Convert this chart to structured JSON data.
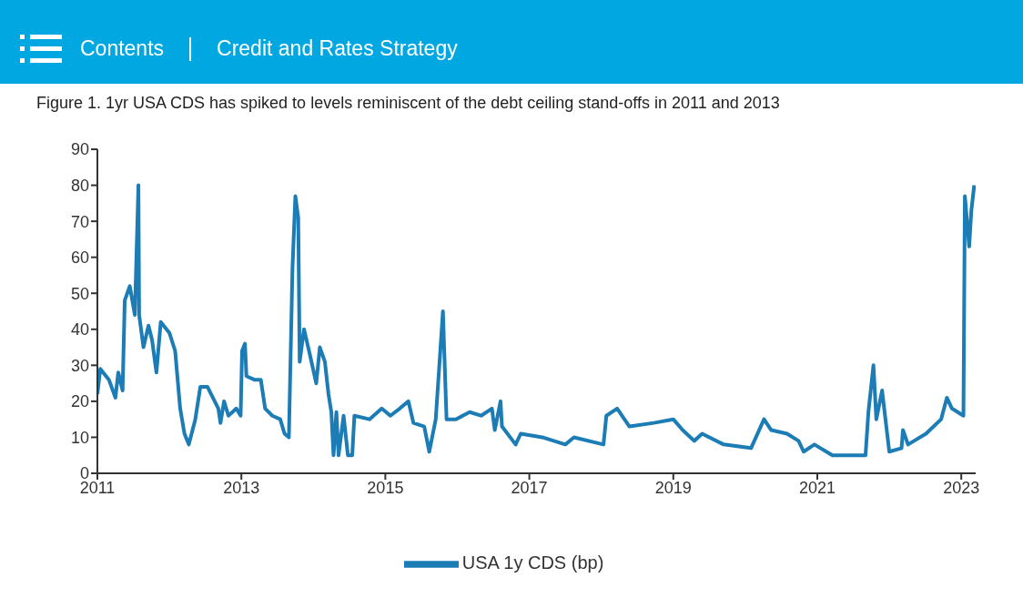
{
  "chart_data": {
    "type": "line",
    "title": "Figure 1. 1yr USA CDS has spiked to levels reminiscent of the debt ceiling stand-offs in 2011 and 2013",
    "annotations": [
      "Contents",
      "Credit and Rates Strategy"
    ],
    "xlim": [
      2011,
      2023.2
    ],
    "xticks": [
      2011,
      2013,
      2015,
      2017,
      2019,
      2021,
      2023
    ],
    "ylim": [
      0,
      90
    ],
    "yticks": [
      0,
      10,
      20,
      30,
      40,
      50,
      60,
      70,
      80,
      90
    ],
    "grid": false,
    "legend": "bottom",
    "marker": "none",
    "line_style": "solid",
    "series": [
      {
        "name": "USA 1y CDS (bp)",
        "color": "#1b7cb6",
        "x": [
          2011.0,
          2011.04,
          2011.16,
          2011.25,
          2011.29,
          2011.35,
          2011.38,
          2011.45,
          2011.52,
          2011.57,
          2011.58,
          2011.64,
          2011.71,
          2011.76,
          2011.82,
          2011.88,
          2012.0,
          2012.08,
          2012.15,
          2012.21,
          2012.27,
          2012.36,
          2012.43,
          2012.53,
          2012.68,
          2012.71,
          2012.76,
          2012.82,
          2012.93,
          2012.99,
          2013.01,
          2013.05,
          2013.07,
          2013.18,
          2013.27,
          2013.33,
          2013.43,
          2013.54,
          2013.6,
          2013.66,
          2013.71,
          2013.75,
          2013.79,
          2013.81,
          2013.87,
          2013.94,
          2014.04,
          2014.09,
          2014.16,
          2014.21,
          2014.25,
          2014.28,
          2014.32,
          2014.35,
          2014.42,
          2014.48,
          2014.54,
          2014.57,
          2014.78,
          2014.95,
          2015.07,
          2015.2,
          2015.32,
          2015.39,
          2015.54,
          2015.61,
          2015.7,
          2015.8,
          2015.85,
          2015.98,
          2016.17,
          2016.33,
          2016.48,
          2016.52,
          2016.6,
          2016.62,
          2016.81,
          2016.88,
          2017.18,
          2017.5,
          2017.62,
          2018.03,
          2018.07,
          2018.22,
          2018.39,
          2018.73,
          2019.0,
          2019.13,
          2019.29,
          2019.4,
          2019.7,
          2020.08,
          2020.26,
          2020.36,
          2020.58,
          2020.74,
          2020.81,
          2020.96,
          2021.21,
          2021.67,
          2021.71,
          2021.78,
          2021.82,
          2021.9,
          2022.0,
          2022.17,
          2022.19,
          2022.26,
          2022.51,
          2022.72,
          2022.8,
          2022.87,
          2023.03,
          2023.05,
          2023.11,
          2023.14,
          2023.18
        ],
        "values": [
          22,
          29,
          26,
          21,
          28,
          23,
          48,
          52,
          44,
          80,
          44,
          35,
          41,
          37,
          28,
          42,
          39,
          34,
          18,
          11,
          8,
          15,
          24,
          24,
          18,
          14,
          20,
          16,
          18,
          16,
          34,
          36,
          27,
          26,
          26,
          18,
          16,
          15,
          11,
          10,
          57,
          77,
          71,
          31,
          40,
          34,
          25,
          35,
          31,
          22,
          17,
          5,
          17,
          5,
          16,
          5,
          5,
          16,
          15,
          18,
          16,
          18,
          20,
          14,
          13,
          6,
          15,
          45,
          15,
          15,
          17,
          16,
          18,
          12,
          20,
          13,
          8,
          11,
          10,
          8,
          10,
          8,
          16,
          18,
          13,
          14,
          15,
          12,
          9,
          11,
          8,
          7,
          15,
          12,
          11,
          9,
          6,
          8,
          5,
          5,
          17,
          30,
          15,
          23,
          6,
          7,
          12,
          8,
          11,
          15,
          21,
          18,
          16,
          77,
          63,
          73,
          80
        ]
      }
    ]
  }
}
